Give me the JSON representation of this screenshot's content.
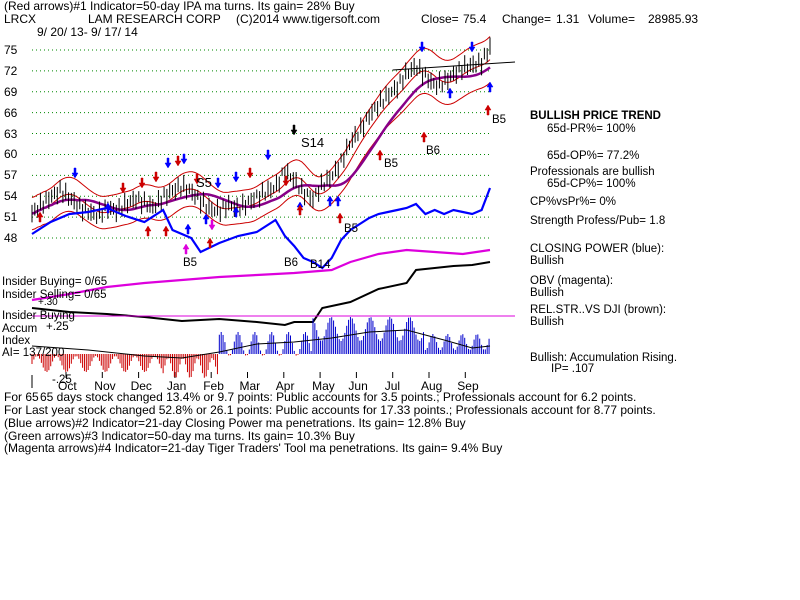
{
  "header": {
    "line1": "(Red arrows)#1 Indicator=50-day IPA ma turns. Its gain= 28% Buy",
    "symbol": "LRCX",
    "company": "LAM RESEARCH CORP",
    "copyright": "(C)2014 www.tigersoft.com",
    "close_label": "Close=",
    "close_value": "75.4",
    "change_label": "Change=",
    "change_value": "1.31",
    "volume_label": "Volume=",
    "volume_value": "28985.93",
    "date_range": "9/ 20/ 13- 9/ 17/ 14"
  },
  "right_panel": {
    "trend_title": "BULLISH PRICE TREND",
    "pr_line": "65d-PR%= 100%",
    "op_line": "65d-OP%= 77.2%",
    "pros": "Professionals are bullish",
    "cp_line": "65d-CP%= 100%",
    "cpvspr": "CP%vsPr%= 0%",
    "strength": "Strength Profess/Pub= 1.8",
    "closing_power_label": "CLOSING POWER (blue):",
    "closing_power_value": "Bullish",
    "obv_label": "OBV (magenta):",
    "obv_value": "Bullish",
    "relstr_label": "REL.STR..VS DJI (brown):",
    "relstr_value": "Bullish",
    "accum_label": "Bullish: Accumulation Rising.",
    "ip_label": "IP= .107"
  },
  "chart_labels": {
    "insider_buying_count": "Insider Buying= 0/65",
    "insider_selling_count": "Insider Selling= 0/65",
    "insider_buying": "Insider Buying",
    "accum": "Accum",
    "index": "Index",
    "ai": "AI= 137/200",
    "acc_p30": "+.30",
    "acc_p25": "+.25",
    "acc_m25": "-.25"
  },
  "signals": {
    "S5": "S5",
    "S14": "S14",
    "B5a": "B5",
    "B5b": "B5",
    "B5c": "B5",
    "B5d": "B5",
    "B6a": "B6",
    "B6b": "B6",
    "B14": "B14"
  },
  "footer": {
    "line1_prefix": "For 65",
    "line1": "65 days stock changed  13.4% or  9.7 points:  Public accounts for  3.5 points.;  Professionals account for  6.2 points.",
    "line2": "For Last year stock changed  52.8% or  26.1 points:  Public accounts for  17.33 points.;  Professionals account for  8.77 points.",
    "line3": "(Blue arrows)#2 Indicator=21-day Closing Power ma penetrations. Its gain= 12.8% Buy",
    "line4": "(Green arrows)#3 Indicator=50-day ma turns. Its gain= 10.3% Buy",
    "line5": "(Magenta arrows)#4 Indicator=21-day Tiger Traders' Tool ma penetrations. Its gain= 9.4% Buy"
  },
  "colors": {
    "price": "#000000",
    "band": "#cc0000",
    "ma50": "#880088",
    "closing_power": "#0000ff",
    "obv": "#dd00dd",
    "relstr": "#000000",
    "accum_pos": "#0000cc",
    "accum_neg": "#cc0000",
    "grid": "#008800"
  },
  "chart_data": {
    "type": "line",
    "title": "LAM RESEARCH CORP",
    "x_months": [
      "Oct",
      "Nov",
      "Dec",
      "Jan",
      "Feb",
      "Mar",
      "Apr",
      "May",
      "Jun",
      "Jul",
      "Aug",
      "Sep"
    ],
    "y_ticks": [
      75,
      72,
      69,
      66,
      63,
      60,
      57,
      54,
      51,
      48
    ],
    "ylim": [
      46,
      77
    ],
    "grid": true,
    "price_series": {
      "name": "Close",
      "points": [
        [
          0,
          51.5
        ],
        [
          10,
          52.8
        ],
        [
          20,
          53.9
        ],
        [
          30,
          54.8
        ],
        [
          40,
          53.8
        ],
        [
          50,
          52.5
        ],
        [
          60,
          51.8
        ],
        [
          70,
          51.2
        ],
        [
          80,
          52.4
        ],
        [
          90,
          51.9
        ],
        [
          100,
          52.8
        ],
        [
          110,
          53.6
        ],
        [
          120,
          53.1
        ],
        [
          130,
          52.4
        ],
        [
          140,
          53.9
        ],
        [
          150,
          54.8
        ],
        [
          160,
          55.4
        ],
        [
          170,
          54.7
        ],
        [
          180,
          53.3
        ],
        [
          190,
          52.2
        ],
        [
          200,
          51.9
        ],
        [
          210,
          52.8
        ],
        [
          220,
          52.2
        ],
        [
          230,
          53.0
        ],
        [
          240,
          53.9
        ],
        [
          250,
          54.6
        ],
        [
          260,
          55.3
        ],
        [
          270,
          57.6
        ],
        [
          280,
          56.3
        ],
        [
          290,
          54.5
        ],
        [
          300,
          53.6
        ],
        [
          310,
          55.7
        ],
        [
          320,
          56.8
        ],
        [
          330,
          58.9
        ],
        [
          340,
          61.8
        ],
        [
          350,
          63.4
        ],
        [
          360,
          65.6
        ],
        [
          370,
          67.2
        ],
        [
          380,
          68.5
        ],
        [
          390,
          69.7
        ],
        [
          400,
          71.7
        ],
        [
          410,
          72.6
        ],
        [
          420,
          71.3
        ],
        [
          430,
          69.9
        ],
        [
          440,
          70.4
        ],
        [
          450,
          71.5
        ],
        [
          460,
          72.4
        ],
        [
          470,
          72.8
        ],
        [
          480,
          73.2
        ],
        [
          489,
          75.4
        ]
      ]
    },
    "indicator_levels": {
      "closing_power": "Bullish",
      "obv": "Bullish",
      "rel_str_vs_dji": "Bullish",
      "accumulation": "Rising"
    }
  }
}
